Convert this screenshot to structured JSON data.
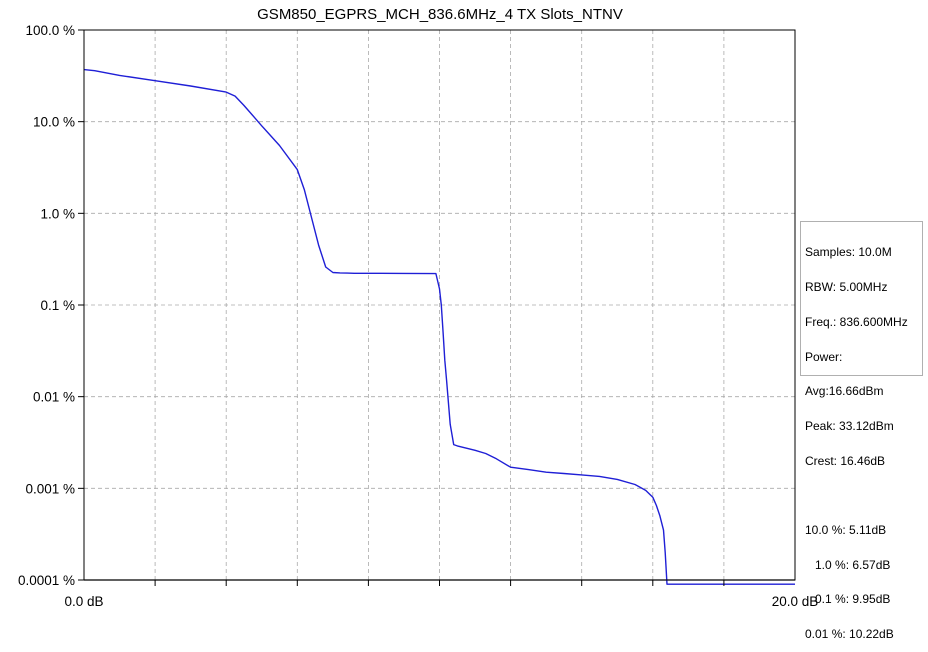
{
  "chart_data": {
    "type": "line",
    "title": "GSM850_EGPRS_MCH_836.6MHz_4 TX Slots_NTNV",
    "xlabel": "",
    "ylabel": "",
    "x_scale": "linear",
    "y_scale": "log",
    "xlim": [
      0,
      20
    ],
    "ylim": [
      0.0001,
      100
    ],
    "grid": true,
    "x_tick_labels": [
      {
        "value": 0,
        "label": "0.0 dB"
      },
      {
        "value": 20,
        "label": "20.0 dB"
      }
    ],
    "y_tick_labels": [
      {
        "value": 100,
        "label": "100.0 %"
      },
      {
        "value": 10,
        "label": "10.0 %"
      },
      {
        "value": 1,
        "label": "1.0 %"
      },
      {
        "value": 0.1,
        "label": "0.1 %"
      },
      {
        "value": 0.01,
        "label": "0.01 %"
      },
      {
        "value": 0.001,
        "label": "0.001 %"
      },
      {
        "value": 0.0001,
        "label": "0.0001 %"
      }
    ],
    "series": [
      {
        "color": "#1f1fd6",
        "x": [
          0.0,
          0.3,
          1.0,
          2.0,
          3.0,
          4.0,
          4.25,
          4.5,
          5.0,
          5.5,
          6.0,
          6.2,
          6.4,
          6.6,
          6.8,
          7.0,
          7.2,
          7.4,
          7.6,
          8.0,
          9.0,
          9.9,
          10.0,
          10.05,
          10.1,
          10.15,
          10.2,
          10.3,
          10.4,
          10.5,
          11.0,
          11.3,
          11.6,
          12.0,
          12.5,
          13.0,
          13.5,
          14.0,
          14.5,
          15.0,
          15.5,
          15.8,
          16.0,
          16.1,
          16.2,
          16.3,
          16.35,
          16.4,
          16.5,
          17.0,
          18.0,
          19.0,
          20.0
        ],
        "y": [
          37.0,
          36.0,
          32.0,
          28.0,
          24.5,
          21.0,
          19.0,
          15.0,
          9.0,
          5.5,
          3.0,
          1.8,
          0.9,
          0.45,
          0.26,
          0.226,
          0.224,
          0.223,
          0.222,
          0.222,
          0.221,
          0.22,
          0.15,
          0.1,
          0.05,
          0.025,
          0.015,
          0.005,
          0.003,
          0.0029,
          0.0026,
          0.0024,
          0.0021,
          0.0017,
          0.0016,
          0.0015,
          0.00145,
          0.0014,
          0.00135,
          0.00125,
          0.0011,
          0.00095,
          0.0008,
          0.00065,
          0.0005,
          0.00035,
          0.0002,
          9e-05,
          9e-05,
          9e-05,
          9e-05,
          9e-05,
          9e-05
        ]
      }
    ]
  },
  "info_box": {
    "samples": "Samples: 10.0M",
    "rbw": "RBW: 5.00MHz",
    "freq": "Freq.: 836.600MHz",
    "power": "Power:",
    "avg": "Avg:16.66dBm",
    "peak": "Peak: 33.12dBm",
    "crest": "Crest: 16.46dB",
    "p10": "10.0 %: 5.11dB",
    "p1": "   1.0 %: 6.57dB",
    "p01": "   0.1 %: 9.95dB",
    "p001": "0.01 %: 10.22dB"
  }
}
